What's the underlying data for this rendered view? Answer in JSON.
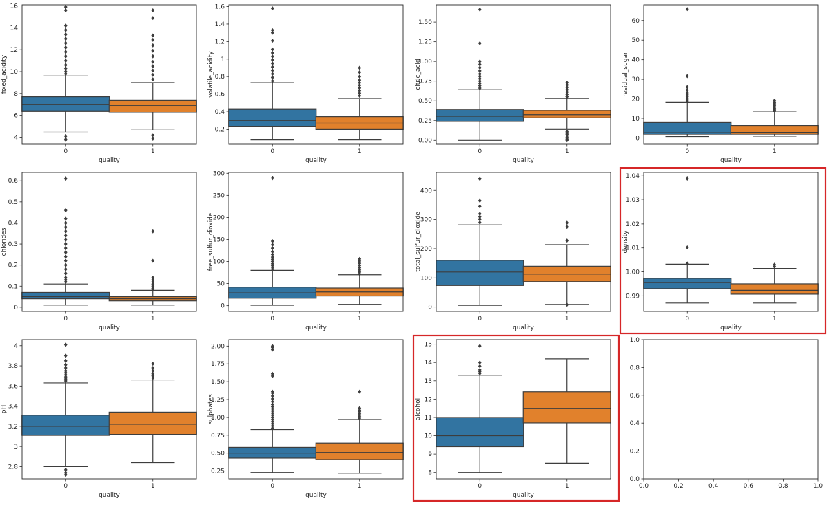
{
  "colors": {
    "class0": "#3274a1",
    "class1": "#e1812c",
    "highlight": "#d62728",
    "frame": "#262626"
  },
  "chart_data": [
    {
      "type": "box",
      "title": "",
      "xlabel": "quality",
      "ylabel": "fixed_acidity",
      "categories": [
        "0",
        "1"
      ],
      "ylim": [
        3.4,
        16.1
      ],
      "yticks": [
        4,
        6,
        8,
        10,
        12,
        14,
        16
      ],
      "boxes": [
        {
          "category": "0",
          "whislo": 4.5,
          "q1": 6.4,
          "med": 7.0,
          "q3": 7.7,
          "whishi": 9.6,
          "fliers": [
            3.8,
            4.1,
            9.8,
            10.0,
            10.3,
            10.6,
            11.0,
            11.4,
            11.8,
            12.2,
            12.6,
            13.0,
            13.4,
            13.8,
            14.2,
            15.6,
            15.9
          ]
        },
        {
          "category": "1",
          "whislo": 4.7,
          "q1": 6.3,
          "med": 6.9,
          "q3": 7.4,
          "whishi": 9.0,
          "fliers": [
            3.9,
            4.2,
            9.3,
            9.7,
            10.1,
            10.5,
            10.9,
            11.4,
            11.9,
            12.4,
            12.9,
            13.3,
            14.9,
            15.6
          ]
        }
      ]
    },
    {
      "type": "box",
      "title": "",
      "xlabel": "quality",
      "ylabel": "volatile_acidity",
      "categories": [
        "0",
        "1"
      ],
      "ylim": [
        0.03,
        1.62
      ],
      "yticks": [
        0.2,
        0.4,
        0.6,
        0.8,
        1.0,
        1.2,
        1.4,
        1.6
      ],
      "boxes": [
        {
          "category": "0",
          "whislo": 0.08,
          "q1": 0.23,
          "med": 0.3,
          "q3": 0.43,
          "whishi": 0.73,
          "fliers": [
            0.75,
            0.79,
            0.83,
            0.87,
            0.91,
            0.95,
            0.99,
            1.03,
            1.07,
            1.11,
            1.21,
            1.3,
            1.33,
            1.58
          ]
        },
        {
          "category": "1",
          "whislo": 0.08,
          "q1": 0.2,
          "med": 0.27,
          "q3": 0.34,
          "whishi": 0.55,
          "fliers": [
            0.58,
            0.61,
            0.64,
            0.67,
            0.7,
            0.73,
            0.76,
            0.8,
            0.85,
            0.9
          ]
        }
      ]
    },
    {
      "type": "box",
      "title": "",
      "xlabel": "quality",
      "ylabel": "citric_acid",
      "categories": [
        "0",
        "1"
      ],
      "ylim": [
        -0.05,
        1.72
      ],
      "yticks": [
        0.0,
        0.25,
        0.5,
        0.75,
        1.0,
        1.25,
        1.5
      ],
      "tick_labels": [
        "0.00",
        "0.25",
        "0.50",
        "0.75",
        "1.00",
        "1.25",
        "1.50"
      ],
      "boxes": [
        {
          "category": "0",
          "whislo": 0.0,
          "q1": 0.24,
          "med": 0.3,
          "q3": 0.39,
          "whishi": 0.64,
          "fliers": [
            0.66,
            0.69,
            0.72,
            0.75,
            0.78,
            0.81,
            0.84,
            0.88,
            0.92,
            0.96,
            1.0,
            1.23,
            1.66
          ]
        },
        {
          "category": "1",
          "whislo": 0.14,
          "q1": 0.28,
          "med": 0.32,
          "q3": 0.38,
          "whishi": 0.53,
          "fliers": [
            0.0,
            0.01,
            0.03,
            0.05,
            0.07,
            0.09,
            0.11,
            0.55,
            0.58,
            0.61,
            0.64,
            0.67,
            0.7,
            0.73
          ]
        }
      ]
    },
    {
      "type": "box",
      "title": "",
      "xlabel": "quality",
      "ylabel": "residual_sugar",
      "categories": [
        "0",
        "1"
      ],
      "ylim": [
        -3.0,
        68.0
      ],
      "yticks": [
        0,
        10,
        20,
        30,
        40,
        50,
        60
      ],
      "boxes": [
        {
          "category": "0",
          "whislo": 0.7,
          "q1": 1.9,
          "med": 3.0,
          "q3": 8.1,
          "whishi": 18.3,
          "fliers": [
            18.8,
            19.5,
            20.2,
            21.0,
            22.0,
            23.0,
            24.5,
            26.0,
            31.6,
            65.8
          ]
        },
        {
          "category": "1",
          "whislo": 0.9,
          "q1": 1.9,
          "med": 2.8,
          "q3": 6.3,
          "whishi": 13.5,
          "fliers": [
            14.0,
            14.6,
            15.2,
            15.9,
            16.6,
            17.4,
            18.3,
            19.2
          ]
        }
      ]
    },
    {
      "type": "box",
      "title": "",
      "xlabel": "quality",
      "ylabel": "chlorides",
      "categories": [
        "0",
        "1"
      ],
      "ylim": [
        -0.02,
        0.64
      ],
      "yticks": [
        0.0,
        0.1,
        0.2,
        0.3,
        0.4,
        0.5,
        0.6
      ],
      "boxes": [
        {
          "category": "0",
          "whislo": 0.01,
          "q1": 0.04,
          "med": 0.05,
          "q3": 0.07,
          "whishi": 0.11,
          "fliers": [
            0.12,
            0.13,
            0.14,
            0.16,
            0.18,
            0.2,
            0.22,
            0.24,
            0.26,
            0.28,
            0.3,
            0.32,
            0.34,
            0.36,
            0.38,
            0.4,
            0.42,
            0.46,
            0.61
          ]
        },
        {
          "category": "1",
          "whislo": 0.01,
          "q1": 0.03,
          "med": 0.04,
          "q3": 0.05,
          "whishi": 0.08,
          "fliers": [
            0.085,
            0.09,
            0.1,
            0.11,
            0.12,
            0.13,
            0.14,
            0.22,
            0.36
          ]
        }
      ]
    },
    {
      "type": "box",
      "title": "",
      "xlabel": "quality",
      "ylabel": "free_sulfur_dioxide",
      "categories": [
        "0",
        "1"
      ],
      "ylim": [
        -13.0,
        302.0
      ],
      "yticks": [
        0,
        50,
        100,
        150,
        200,
        250,
        300
      ],
      "boxes": [
        {
          "category": "0",
          "whislo": 1.0,
          "q1": 17.0,
          "med": 29.0,
          "q3": 42.0,
          "whishi": 80.0,
          "fliers": [
            83,
            87,
            91,
            95,
            100,
            105,
            110,
            116,
            122,
            130,
            138,
            146,
            289
          ]
        },
        {
          "category": "1",
          "whislo": 3.0,
          "q1": 22.0,
          "med": 31.0,
          "q3": 40.0,
          "whishi": 70.0,
          "fliers": [
            72,
            76,
            81,
            86,
            91,
            96,
            101,
            106
          ]
        }
      ]
    },
    {
      "type": "box",
      "title": "",
      "xlabel": "quality",
      "ylabel": "total_sulfur_dioxide",
      "categories": [
        "0",
        "1"
      ],
      "ylim": [
        -15.0,
        462.0
      ],
      "yticks": [
        0,
        100,
        200,
        300,
        400
      ],
      "boxes": [
        {
          "category": "0",
          "whislo": 6.0,
          "q1": 74.0,
          "med": 120.0,
          "q3": 160.0,
          "whishi": 282.0,
          "fliers": [
            290,
            300,
            310,
            320,
            345,
            365,
            440
          ]
        },
        {
          "category": "1",
          "whislo": 9.0,
          "q1": 87.0,
          "med": 113.0,
          "q3": 140.0,
          "whishi": 214.0,
          "fliers": [
            8,
            228,
            275,
            289
          ]
        }
      ]
    },
    {
      "type": "box",
      "title": "",
      "xlabel": "quality",
      "ylabel": "density",
      "categories": [
        "0",
        "1"
      ],
      "ylim": [
        0.9835,
        1.0415
      ],
      "yticks": [
        0.99,
        1.0,
        1.01,
        1.02,
        1.03,
        1.04
      ],
      "tick_labels": [
        "0.99",
        "1.00",
        "1.01",
        "1.02",
        "1.03",
        "1.04"
      ],
      "highlighted": true,
      "boxes": [
        {
          "category": "0",
          "whislo": 0.987,
          "q1": 0.993,
          "med": 0.9955,
          "q3": 0.9973,
          "whishi": 1.0032,
          "fliers": [
            1.0035,
            1.0102,
            1.0389
          ]
        },
        {
          "category": "1",
          "whislo": 0.987,
          "q1": 0.9907,
          "med": 0.9923,
          "q3": 0.995,
          "whishi": 1.0014,
          "fliers": [
            1.0022,
            1.003
          ]
        }
      ]
    },
    {
      "type": "box",
      "title": "",
      "xlabel": "quality",
      "ylabel": "pH",
      "categories": [
        "0",
        "1"
      ],
      "ylim": [
        2.68,
        4.06
      ],
      "yticks": [
        2.8,
        3.0,
        3.2,
        3.4,
        3.6,
        3.8,
        4.0
      ],
      "boxes": [
        {
          "category": "0",
          "whislo": 2.8,
          "q1": 3.11,
          "med": 3.2,
          "q3": 3.31,
          "whishi": 3.63,
          "fliers": [
            2.72,
            2.74,
            2.77,
            3.65,
            3.67,
            3.69,
            3.71,
            3.73,
            3.75,
            3.78,
            3.81,
            3.85,
            3.9,
            4.01
          ]
        },
        {
          "category": "1",
          "whislo": 2.84,
          "q1": 3.12,
          "med": 3.22,
          "q3": 3.34,
          "whishi": 3.66,
          "fliers": [
            3.68,
            3.7,
            3.72,
            3.75,
            3.78,
            3.82
          ]
        }
      ]
    },
    {
      "type": "box",
      "title": "",
      "xlabel": "quality",
      "ylabel": "sulphates",
      "categories": [
        "0",
        "1"
      ],
      "ylim": [
        0.14,
        2.09
      ],
      "yticks": [
        0.25,
        0.5,
        0.75,
        1.0,
        1.25,
        1.5,
        1.75,
        2.0
      ],
      "tick_labels": [
        "0.25",
        "0.50",
        "0.75",
        "1.00",
        "1.25",
        "1.50",
        "1.75",
        "2.00"
      ],
      "boxes": [
        {
          "category": "0",
          "whislo": 0.23,
          "q1": 0.43,
          "med": 0.5,
          "q3": 0.58,
          "whishi": 0.83,
          "fliers": [
            0.85,
            0.88,
            0.91,
            0.94,
            0.97,
            1.0,
            1.03,
            1.06,
            1.09,
            1.12,
            1.15,
            1.18,
            1.22,
            1.26,
            1.3,
            1.34,
            1.36,
            1.58,
            1.61,
            1.95,
            1.98,
            2.0
          ]
        },
        {
          "category": "1",
          "whislo": 0.22,
          "q1": 0.41,
          "med": 0.51,
          "q3": 0.64,
          "whishi": 0.97,
          "fliers": [
            0.99,
            1.01,
            1.03,
            1.05,
            1.08,
            1.1,
            1.13,
            1.36
          ]
        }
      ]
    },
    {
      "type": "box",
      "title": "",
      "xlabel": "quality",
      "ylabel": "alcohol",
      "categories": [
        "0",
        "1"
      ],
      "ylim": [
        7.65,
        15.25
      ],
      "yticks": [
        8,
        9,
        10,
        11,
        12,
        13,
        14,
        15
      ],
      "highlighted": true,
      "boxes": [
        {
          "category": "0",
          "whislo": 8.0,
          "q1": 9.4,
          "med": 10.0,
          "q3": 11.0,
          "whishi": 13.3,
          "fliers": [
            13.4,
            13.5,
            13.6,
            13.8,
            14.0,
            14.9
          ]
        },
        {
          "category": "1",
          "whislo": 8.5,
          "q1": 10.7,
          "med": 11.5,
          "q3": 12.4,
          "whishi": 14.2,
          "fliers": []
        }
      ]
    },
    {
      "type": "empty",
      "title": "",
      "xlabel": "",
      "ylabel": "",
      "xlim": [
        0,
        1
      ],
      "ylim": [
        0,
        1
      ],
      "xticks": [
        0.0,
        0.2,
        0.4,
        0.6,
        0.8,
        1.0
      ],
      "yticks": [
        0.0,
        0.2,
        0.4,
        0.6,
        0.8,
        1.0
      ],
      "tick_labels": [
        "0.0",
        "0.2",
        "0.4",
        "0.6",
        "0.8",
        "1.0"
      ]
    }
  ]
}
